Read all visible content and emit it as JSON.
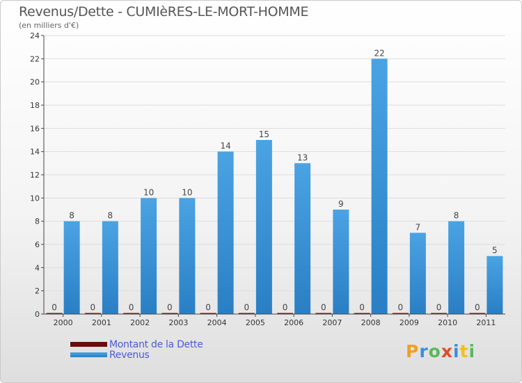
{
  "title": "Revenus/Dette - CUMIèRES-LE-MORT-HOMME",
  "subtitle": "(en milliers d'€)",
  "colors": {
    "dette": "#6b0a0a",
    "revenus": "#4aa3e3",
    "revenus_dark": "#2a7fc4",
    "grid": "#dcdcdc",
    "axis": "#444444"
  },
  "legend": {
    "dette_label": "Montant de la Dette",
    "revenus_label": "Revenus"
  },
  "logo": {
    "letters": [
      "P",
      "r",
      "o",
      "x",
      "i",
      "t",
      "i"
    ],
    "colors": [
      "#f0a020",
      "#3a8fd8",
      "#5cb85c",
      "#e14b2a",
      "#3a8fd8",
      "#f0c020",
      "#5cb85c"
    ]
  },
  "chart_data": {
    "type": "bar",
    "title": "Revenus/Dette - CUMIèRES-LE-MORT-HOMME",
    "ylabel": "(en milliers d'€)",
    "categories": [
      "2000",
      "2001",
      "2002",
      "2003",
      "2004",
      "2005",
      "2006",
      "2007",
      "2008",
      "2009",
      "2010",
      "2011"
    ],
    "series": [
      {
        "name": "Montant de la Dette",
        "values": [
          0,
          0,
          0,
          0,
          0,
          0,
          0,
          0,
          0,
          0,
          0,
          0
        ]
      },
      {
        "name": "Revenus",
        "values": [
          8,
          8,
          10,
          10,
          14,
          15,
          13,
          9,
          22,
          7,
          8,
          5
        ]
      }
    ],
    "ylim": [
      0,
      24
    ],
    "yticks": [
      0,
      2,
      4,
      6,
      8,
      10,
      12,
      14,
      16,
      18,
      20,
      22,
      24
    ],
    "grid": true,
    "legend_position": "bottom-left"
  }
}
